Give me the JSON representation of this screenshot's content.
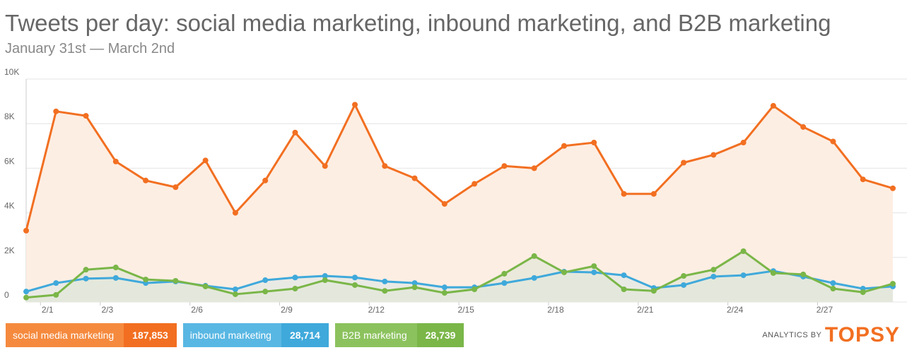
{
  "chart_data": {
    "type": "line",
    "title": "Tweets per day: social media marketing, inbound marketing, and B2B marketing",
    "subtitle": "January 31st — March 2nd",
    "categories": [
      null,
      "2/1",
      null,
      "2/3",
      null,
      null,
      "2/6",
      null,
      null,
      "2/9",
      null,
      null,
      "2/12",
      null,
      null,
      "2/15",
      null,
      null,
      "2/18",
      null,
      null,
      "2/21",
      null,
      null,
      "2/24",
      null,
      null,
      "2/27",
      null,
      null
    ],
    "ylim": [
      0,
      10000
    ],
    "yticks": [
      0,
      {
        "value": 2000,
        "label": "2K"
      },
      {
        "value": 4000,
        "label": "4K"
      },
      {
        "value": 6000,
        "label": "6K"
      },
      {
        "value": 8000,
        "label": "8K"
      },
      {
        "value": 10000,
        "label": "10K"
      }
    ],
    "grid": true,
    "series": [
      {
        "name": "social media marketing",
        "color": "#f26f21",
        "total": {
          "value": 187853,
          "label": "187,853"
        },
        "values": [
          3200,
          8550,
          8350,
          6300,
          5450,
          5150,
          6350,
          4000,
          5450,
          7600,
          6100,
          8850,
          6100,
          5550,
          4400,
          5300,
          6100,
          6000,
          7000,
          7150,
          4850,
          4850,
          6250,
          6600,
          7150,
          8800,
          7850,
          7200,
          5500,
          5100
        ]
      },
      {
        "name": "inbound marketing",
        "color": "#3fa9db",
        "total": {
          "value": 28714,
          "label": "28,714"
        },
        "values": [
          470,
          850,
          1050,
          1080,
          850,
          920,
          730,
          570,
          980,
          1100,
          1170,
          1100,
          920,
          850,
          660,
          660,
          850,
          1080,
          1360,
          1330,
          1200,
          630,
          760,
          1140,
          1200,
          1390,
          1140,
          850,
          600,
          700
        ]
      },
      {
        "name": "B2B marketing",
        "color": "#7ab648",
        "total": {
          "value": 28739,
          "label": "28,739"
        },
        "values": [
          200,
          320,
          1450,
          1550,
          1010,
          950,
          700,
          350,
          470,
          600,
          980,
          760,
          500,
          660,
          410,
          570,
          1270,
          2060,
          1330,
          1610,
          570,
          500,
          1170,
          1450,
          2280,
          1300,
          1240,
          600,
          440,
          820
        ]
      }
    ],
    "footer_prefix": "ANALYTICS BY",
    "footer_brand": "TOPSY"
  }
}
